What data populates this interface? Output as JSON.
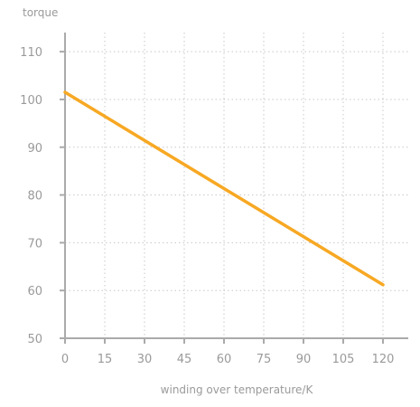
{
  "chart_data": {
    "type": "line",
    "title": "",
    "xlabel": "winding over temperature/K",
    "ylabel": "torque",
    "xlim": [
      0,
      124
    ],
    "ylim": [
      50,
      114
    ],
    "x_ticks": [
      0,
      15,
      30,
      45,
      60,
      75,
      90,
      105,
      120
    ],
    "y_ticks": [
      50,
      60,
      70,
      80,
      90,
      100,
      110
    ],
    "grid": true,
    "legend": "none",
    "series": [
      {
        "color": "#f7a823",
        "x": [
          0,
          120
        ],
        "y": [
          101.5,
          61.2
        ]
      }
    ]
  }
}
